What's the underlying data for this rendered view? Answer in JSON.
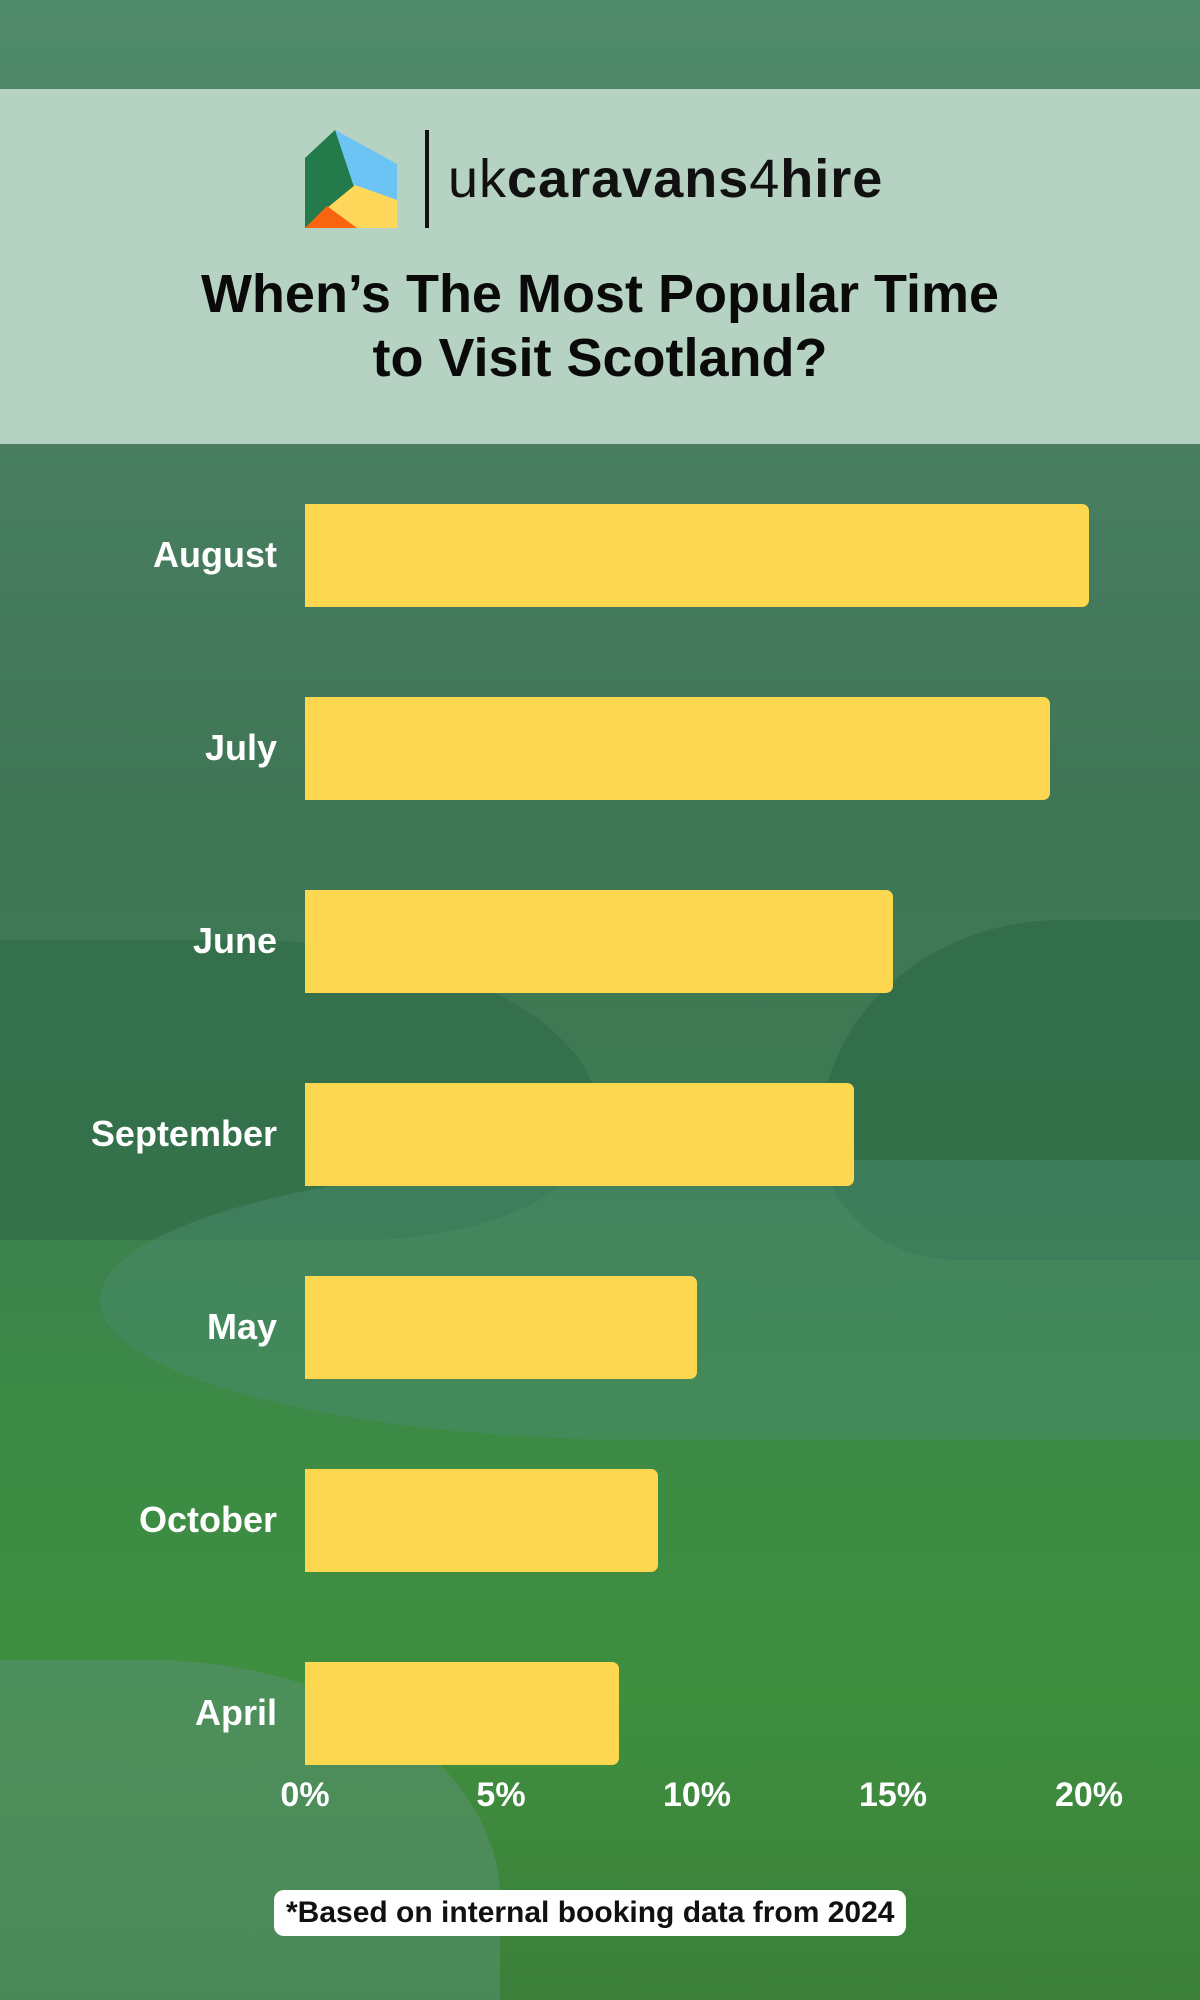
{
  "brand": {
    "part1": "uk",
    "part2": "caravans",
    "part3": "4",
    "part4": "hire"
  },
  "title": {
    "line1": "When’s The Most Popular Time",
    "line2": "to Visit Scotland?"
  },
  "colors": {
    "bar": "#fdd74f",
    "header": "#c4ddcf",
    "background": "#3f7a55"
  },
  "chart_data": {
    "type": "bar",
    "orientation": "horizontal",
    "categories": [
      "August",
      "July",
      "June",
      "September",
      "May",
      "October",
      "April"
    ],
    "values": [
      20,
      19,
      15,
      14,
      10,
      9,
      8
    ],
    "unit": "%",
    "xlim": [
      0,
      20
    ],
    "xticks": [
      "0%",
      "5%",
      "10%",
      "15%",
      "20%"
    ],
    "grid": false
  },
  "footnote": "*Based on internal booking data from 2024"
}
